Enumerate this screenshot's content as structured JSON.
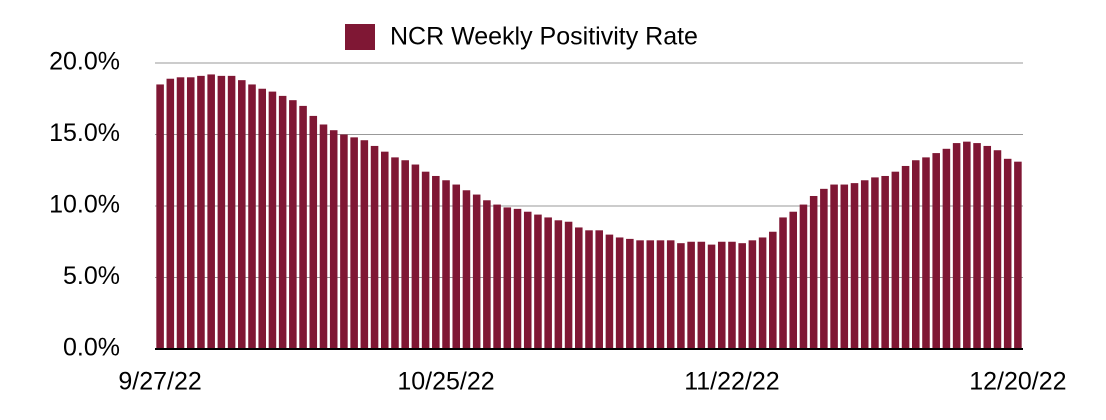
{
  "chart_data": {
    "type": "bar",
    "categories": [
      "9/27/22",
      null,
      null,
      null,
      null,
      null,
      null,
      null,
      null,
      null,
      null,
      null,
      null,
      null,
      null,
      null,
      null,
      null,
      null,
      null,
      null,
      null,
      null,
      null,
      null,
      null,
      null,
      null,
      "10/25/22",
      null,
      null,
      null,
      null,
      null,
      null,
      null,
      null,
      null,
      null,
      null,
      null,
      null,
      null,
      null,
      null,
      null,
      null,
      null,
      null,
      null,
      null,
      null,
      null,
      null,
      null,
      null,
      "11/22/22",
      null,
      null,
      null,
      null,
      null,
      null,
      null,
      null,
      null,
      null,
      null,
      null,
      null,
      null,
      null,
      null,
      null,
      null,
      null,
      null,
      null,
      null,
      null,
      null,
      null,
      null,
      null,
      "12/20/22"
    ],
    "series": [
      {
        "name": "NCR Weekly Positivity Rate",
        "color": "#7f1734",
        "values": [
          18.5,
          18.9,
          19.0,
          19.0,
          19.1,
          19.2,
          19.1,
          19.1,
          18.8,
          18.5,
          18.2,
          18.0,
          17.7,
          17.4,
          17.0,
          16.3,
          15.7,
          15.3,
          15.0,
          14.8,
          14.6,
          14.2,
          13.8,
          13.4,
          13.2,
          12.9,
          12.4,
          12.1,
          11.8,
          11.5,
          11.1,
          10.8,
          10.4,
          10.1,
          9.9,
          9.8,
          9.6,
          9.4,
          9.2,
          9.0,
          8.9,
          8.5,
          8.3,
          8.3,
          8.0,
          7.8,
          7.7,
          7.6,
          7.6,
          7.6,
          7.6,
          7.4,
          7.5,
          7.5,
          7.3,
          7.5,
          7.5,
          7.4,
          7.6,
          7.8,
          8.2,
          9.2,
          9.6,
          10.1,
          10.7,
          11.2,
          11.5,
          11.5,
          11.6,
          11.8,
          12.0,
          12.1,
          12.4,
          12.8,
          13.2,
          13.4,
          13.7,
          14.0,
          14.4,
          14.5,
          14.4,
          14.2,
          13.9,
          13.3,
          13.1
        ]
      }
    ],
    "ylim": [
      0,
      20
    ],
    "yticks": [
      {
        "value": 0,
        "label": "0.0%"
      },
      {
        "value": 5,
        "label": "5.0%"
      },
      {
        "value": 10,
        "label": "10.0%"
      },
      {
        "value": 15,
        "label": "15.0%"
      },
      {
        "value": 20,
        "label": "20.0%"
      }
    ],
    "grid": true,
    "legend": "top"
  }
}
